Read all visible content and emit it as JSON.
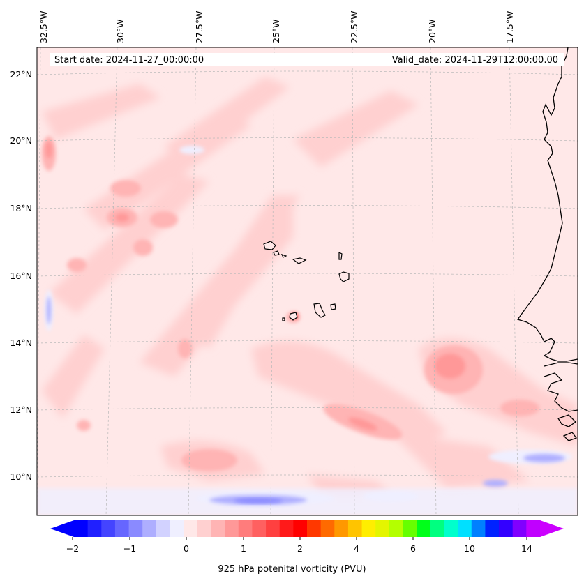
{
  "header": {
    "start_date": "Start date: 2024-11-27_00:00:00",
    "valid_date": "Valid_date: 2024-11-29T12:00:00.00"
  },
  "axes": {
    "lon_labels": [
      "32.5°W",
      "30°W",
      "27.5°W",
      "25°W",
      "22.5°W",
      "20°W",
      "17.5°W"
    ],
    "lat_labels": [
      "22°N",
      "20°N",
      "18°N",
      "16°N",
      "14°N",
      "12°N",
      "10°N"
    ]
  },
  "colorbar": {
    "label": "925 hPa potenital vorticity (PVU)",
    "tick_labels": [
      "−2",
      "−1",
      "0",
      "1",
      "2",
      "4",
      "6",
      "10",
      "14"
    ],
    "colors": [
      "#0000ff",
      "#2020ff",
      "#4444ff",
      "#6666ff",
      "#8a8aff",
      "#aeaeff",
      "#d2d2ff",
      "#efefff",
      "#ffe8e8",
      "#ffd0d0",
      "#ffb4b4",
      "#ff9898",
      "#ff7c7c",
      "#ff6060",
      "#ff4040",
      "#ff1a1a",
      "#ff0000",
      "#ff3800",
      "#ff6a00",
      "#ff9800",
      "#ffc400",
      "#ffee00",
      "#e4f500",
      "#b4ff00",
      "#66ff00",
      "#00ff1a",
      "#00ff80",
      "#00ffcc",
      "#00e0ff",
      "#0080ff",
      "#0022ff",
      "#3300ff",
      "#8000ff",
      "#c000ff"
    ],
    "extend_low": "#0000ff",
    "extend_high": "#cc00ff"
  },
  "map": {
    "background": "#ffe8e8",
    "coastline_color": "#000000"
  }
}
